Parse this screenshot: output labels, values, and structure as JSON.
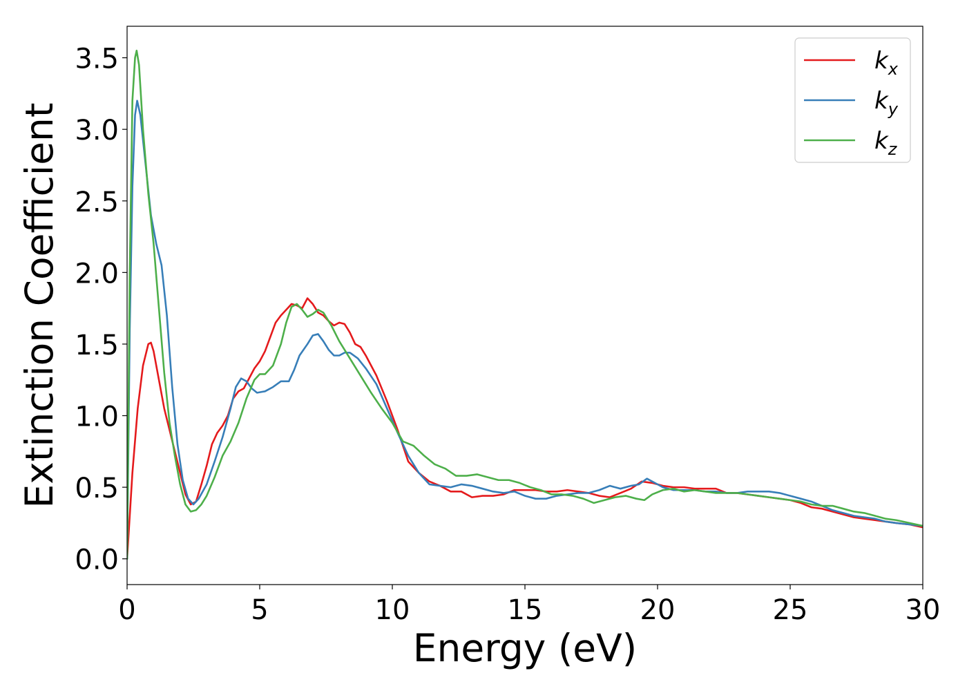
{
  "chart_data": {
    "type": "line",
    "title": "",
    "xlabel": "Energy (eV)",
    "ylabel": "Extinction Coefficient",
    "xlim": [
      0,
      30
    ],
    "ylim": [
      -0.18,
      3.72
    ],
    "xticks": [
      0,
      5,
      10,
      15,
      20,
      25,
      30
    ],
    "xtick_labels": [
      "0",
      "5",
      "10",
      "15",
      "20",
      "25",
      "30"
    ],
    "yticks": [
      0.0,
      0.5,
      1.0,
      1.5,
      2.0,
      2.5,
      3.0,
      3.5
    ],
    "ytick_labels": [
      "0.0",
      "0.5",
      "1.0",
      "1.5",
      "2.0",
      "2.5",
      "3.0",
      "3.5"
    ],
    "grid": false,
    "legend_position": "top-right",
    "series": [
      {
        "name": "k_x",
        "label_main": "k",
        "label_sub": "x",
        "color": "#e41a1c",
        "points": [
          [
            0,
            0.0
          ],
          [
            0.2,
            0.6
          ],
          [
            0.4,
            1.05
          ],
          [
            0.6,
            1.35
          ],
          [
            0.8,
            1.5
          ],
          [
            0.9,
            1.51
          ],
          [
            1.0,
            1.45
          ],
          [
            1.2,
            1.25
          ],
          [
            1.4,
            1.05
          ],
          [
            1.6,
            0.9
          ],
          [
            1.8,
            0.75
          ],
          [
            2.0,
            0.6
          ],
          [
            2.2,
            0.45
          ],
          [
            2.4,
            0.38
          ],
          [
            2.6,
            0.4
          ],
          [
            2.8,
            0.52
          ],
          [
            3.0,
            0.65
          ],
          [
            3.2,
            0.8
          ],
          [
            3.4,
            0.88
          ],
          [
            3.6,
            0.93
          ],
          [
            3.8,
            1.0
          ],
          [
            4.0,
            1.12
          ],
          [
            4.2,
            1.17
          ],
          [
            4.4,
            1.19
          ],
          [
            4.6,
            1.26
          ],
          [
            4.8,
            1.33
          ],
          [
            5.0,
            1.38
          ],
          [
            5.2,
            1.45
          ],
          [
            5.4,
            1.55
          ],
          [
            5.6,
            1.65
          ],
          [
            5.8,
            1.7
          ],
          [
            6.0,
            1.74
          ],
          [
            6.2,
            1.78
          ],
          [
            6.4,
            1.77
          ],
          [
            6.6,
            1.75
          ],
          [
            6.8,
            1.82
          ],
          [
            7.0,
            1.78
          ],
          [
            7.2,
            1.72
          ],
          [
            7.4,
            1.7
          ],
          [
            7.6,
            1.66
          ],
          [
            7.8,
            1.63
          ],
          [
            8.0,
            1.65
          ],
          [
            8.2,
            1.64
          ],
          [
            8.4,
            1.58
          ],
          [
            8.6,
            1.5
          ],
          [
            8.8,
            1.48
          ],
          [
            9.0,
            1.42
          ],
          [
            9.4,
            1.28
          ],
          [
            9.8,
            1.1
          ],
          [
            10.2,
            0.9
          ],
          [
            10.6,
            0.68
          ],
          [
            11.0,
            0.6
          ],
          [
            11.4,
            0.54
          ],
          [
            11.8,
            0.51
          ],
          [
            12.2,
            0.47
          ],
          [
            12.6,
            0.47
          ],
          [
            13.0,
            0.43
          ],
          [
            13.4,
            0.44
          ],
          [
            13.8,
            0.44
          ],
          [
            14.2,
            0.45
          ],
          [
            14.6,
            0.48
          ],
          [
            15.0,
            0.48
          ],
          [
            15.4,
            0.48
          ],
          [
            15.8,
            0.47
          ],
          [
            16.2,
            0.47
          ],
          [
            16.6,
            0.48
          ],
          [
            17.0,
            0.47
          ],
          [
            17.4,
            0.46
          ],
          [
            17.8,
            0.44
          ],
          [
            18.2,
            0.43
          ],
          [
            18.6,
            0.46
          ],
          [
            19.0,
            0.49
          ],
          [
            19.4,
            0.54
          ],
          [
            19.8,
            0.53
          ],
          [
            20.2,
            0.51
          ],
          [
            20.6,
            0.5
          ],
          [
            21.0,
            0.5
          ],
          [
            21.4,
            0.49
          ],
          [
            21.8,
            0.49
          ],
          [
            22.2,
            0.49
          ],
          [
            22.6,
            0.46
          ],
          [
            23.0,
            0.46
          ],
          [
            23.4,
            0.45
          ],
          [
            23.8,
            0.44
          ],
          [
            24.2,
            0.43
          ],
          [
            24.6,
            0.42
          ],
          [
            25.0,
            0.41
          ],
          [
            25.4,
            0.39
          ],
          [
            25.8,
            0.36
          ],
          [
            26.2,
            0.35
          ],
          [
            26.6,
            0.33
          ],
          [
            27.0,
            0.31
          ],
          [
            27.4,
            0.29
          ],
          [
            27.8,
            0.28
          ],
          [
            28.2,
            0.27
          ],
          [
            28.6,
            0.26
          ],
          [
            29.0,
            0.25
          ],
          [
            29.5,
            0.24
          ],
          [
            30.0,
            0.22
          ]
        ]
      },
      {
        "name": "k_y",
        "label_main": "k",
        "label_sub": "y",
        "color": "#377eb8",
        "points": [
          [
            0,
            0.0
          ],
          [
            0.1,
            1.6
          ],
          [
            0.2,
            2.6
          ],
          [
            0.3,
            3.1
          ],
          [
            0.38,
            3.2
          ],
          [
            0.5,
            3.1
          ],
          [
            0.7,
            2.75
          ],
          [
            0.9,
            2.4
          ],
          [
            1.1,
            2.2
          ],
          [
            1.3,
            2.05
          ],
          [
            1.5,
            1.7
          ],
          [
            1.7,
            1.2
          ],
          [
            1.9,
            0.8
          ],
          [
            2.1,
            0.55
          ],
          [
            2.3,
            0.42
          ],
          [
            2.5,
            0.38
          ],
          [
            2.7,
            0.42
          ],
          [
            3.0,
            0.52
          ],
          [
            3.3,
            0.68
          ],
          [
            3.6,
            0.85
          ],
          [
            3.9,
            1.05
          ],
          [
            4.1,
            1.2
          ],
          [
            4.3,
            1.26
          ],
          [
            4.5,
            1.24
          ],
          [
            4.7,
            1.19
          ],
          [
            4.9,
            1.16
          ],
          [
            5.2,
            1.17
          ],
          [
            5.5,
            1.2
          ],
          [
            5.8,
            1.24
          ],
          [
            6.1,
            1.24
          ],
          [
            6.3,
            1.32
          ],
          [
            6.5,
            1.42
          ],
          [
            6.8,
            1.5
          ],
          [
            7.0,
            1.56
          ],
          [
            7.2,
            1.57
          ],
          [
            7.4,
            1.52
          ],
          [
            7.6,
            1.46
          ],
          [
            7.8,
            1.42
          ],
          [
            8.0,
            1.42
          ],
          [
            8.2,
            1.44
          ],
          [
            8.4,
            1.44
          ],
          [
            8.7,
            1.4
          ],
          [
            9.0,
            1.33
          ],
          [
            9.4,
            1.22
          ],
          [
            9.8,
            1.05
          ],
          [
            10.2,
            0.88
          ],
          [
            10.6,
            0.72
          ],
          [
            11.0,
            0.6
          ],
          [
            11.4,
            0.52
          ],
          [
            11.8,
            0.51
          ],
          [
            12.2,
            0.5
          ],
          [
            12.6,
            0.52
          ],
          [
            13.0,
            0.51
          ],
          [
            13.4,
            0.49
          ],
          [
            13.8,
            0.47
          ],
          [
            14.2,
            0.46
          ],
          [
            14.6,
            0.47
          ],
          [
            15.0,
            0.44
          ],
          [
            15.4,
            0.42
          ],
          [
            15.8,
            0.42
          ],
          [
            16.2,
            0.44
          ],
          [
            16.6,
            0.45
          ],
          [
            17.0,
            0.46
          ],
          [
            17.4,
            0.46
          ],
          [
            17.8,
            0.48
          ],
          [
            18.2,
            0.51
          ],
          [
            18.6,
            0.49
          ],
          [
            19.0,
            0.51
          ],
          [
            19.3,
            0.52
          ],
          [
            19.6,
            0.56
          ],
          [
            19.9,
            0.53
          ],
          [
            20.2,
            0.5
          ],
          [
            20.6,
            0.48
          ],
          [
            21.0,
            0.48
          ],
          [
            21.4,
            0.48
          ],
          [
            21.8,
            0.47
          ],
          [
            22.2,
            0.47
          ],
          [
            22.6,
            0.46
          ],
          [
            23.0,
            0.46
          ],
          [
            23.4,
            0.47
          ],
          [
            23.8,
            0.47
          ],
          [
            24.2,
            0.47
          ],
          [
            24.6,
            0.46
          ],
          [
            25.0,
            0.44
          ],
          [
            25.4,
            0.42
          ],
          [
            25.8,
            0.4
          ],
          [
            26.2,
            0.37
          ],
          [
            26.6,
            0.34
          ],
          [
            27.0,
            0.32
          ],
          [
            27.4,
            0.3
          ],
          [
            27.8,
            0.29
          ],
          [
            28.2,
            0.28
          ],
          [
            28.6,
            0.26
          ],
          [
            29.0,
            0.25
          ],
          [
            29.5,
            0.24
          ],
          [
            30.0,
            0.23
          ]
        ]
      },
      {
        "name": "k_z",
        "label_main": "k",
        "label_sub": "z",
        "color": "#4daf4a",
        "points": [
          [
            0,
            0.0
          ],
          [
            0.1,
            2.0
          ],
          [
            0.2,
            3.2
          ],
          [
            0.3,
            3.5
          ],
          [
            0.36,
            3.55
          ],
          [
            0.45,
            3.45
          ],
          [
            0.6,
            3.0
          ],
          [
            0.8,
            2.55
          ],
          [
            1.0,
            2.2
          ],
          [
            1.2,
            1.75
          ],
          [
            1.4,
            1.3
          ],
          [
            1.6,
            0.95
          ],
          [
            1.8,
            0.72
          ],
          [
            2.0,
            0.52
          ],
          [
            2.2,
            0.38
          ],
          [
            2.4,
            0.33
          ],
          [
            2.6,
            0.34
          ],
          [
            2.8,
            0.38
          ],
          [
            3.0,
            0.44
          ],
          [
            3.3,
            0.57
          ],
          [
            3.6,
            0.72
          ],
          [
            3.9,
            0.82
          ],
          [
            4.2,
            0.95
          ],
          [
            4.5,
            1.12
          ],
          [
            4.8,
            1.25
          ],
          [
            5.0,
            1.29
          ],
          [
            5.2,
            1.29
          ],
          [
            5.5,
            1.35
          ],
          [
            5.8,
            1.5
          ],
          [
            6.0,
            1.65
          ],
          [
            6.2,
            1.76
          ],
          [
            6.4,
            1.78
          ],
          [
            6.6,
            1.74
          ],
          [
            6.8,
            1.69
          ],
          [
            7.0,
            1.71
          ],
          [
            7.2,
            1.74
          ],
          [
            7.4,
            1.72
          ],
          [
            7.7,
            1.63
          ],
          [
            8.0,
            1.52
          ],
          [
            8.4,
            1.4
          ],
          [
            8.8,
            1.28
          ],
          [
            9.2,
            1.16
          ],
          [
            9.6,
            1.05
          ],
          [
            10.0,
            0.95
          ],
          [
            10.4,
            0.82
          ],
          [
            10.8,
            0.79
          ],
          [
            11.2,
            0.72
          ],
          [
            11.6,
            0.66
          ],
          [
            12.0,
            0.63
          ],
          [
            12.4,
            0.58
          ],
          [
            12.8,
            0.58
          ],
          [
            13.2,
            0.59
          ],
          [
            13.6,
            0.57
          ],
          [
            14.0,
            0.55
          ],
          [
            14.4,
            0.55
          ],
          [
            14.8,
            0.53
          ],
          [
            15.2,
            0.5
          ],
          [
            15.6,
            0.48
          ],
          [
            16.0,
            0.45
          ],
          [
            16.4,
            0.45
          ],
          [
            16.8,
            0.44
          ],
          [
            17.2,
            0.42
          ],
          [
            17.6,
            0.39
          ],
          [
            18.0,
            0.41
          ],
          [
            18.4,
            0.43
          ],
          [
            18.8,
            0.44
          ],
          [
            19.2,
            0.42
          ],
          [
            19.5,
            0.41
          ],
          [
            19.8,
            0.45
          ],
          [
            20.2,
            0.48
          ],
          [
            20.6,
            0.49
          ],
          [
            21.0,
            0.47
          ],
          [
            21.4,
            0.48
          ],
          [
            21.8,
            0.47
          ],
          [
            22.2,
            0.46
          ],
          [
            22.6,
            0.46
          ],
          [
            23.0,
            0.46
          ],
          [
            23.4,
            0.45
          ],
          [
            23.8,
            0.44
          ],
          [
            24.2,
            0.43
          ],
          [
            24.6,
            0.42
          ],
          [
            25.0,
            0.41
          ],
          [
            25.4,
            0.4
          ],
          [
            25.8,
            0.38
          ],
          [
            26.2,
            0.37
          ],
          [
            26.6,
            0.37
          ],
          [
            27.0,
            0.35
          ],
          [
            27.4,
            0.33
          ],
          [
            27.8,
            0.32
          ],
          [
            28.2,
            0.3
          ],
          [
            28.6,
            0.28
          ],
          [
            29.0,
            0.27
          ],
          [
            29.5,
            0.25
          ],
          [
            30.0,
            0.23
          ]
        ]
      }
    ]
  }
}
